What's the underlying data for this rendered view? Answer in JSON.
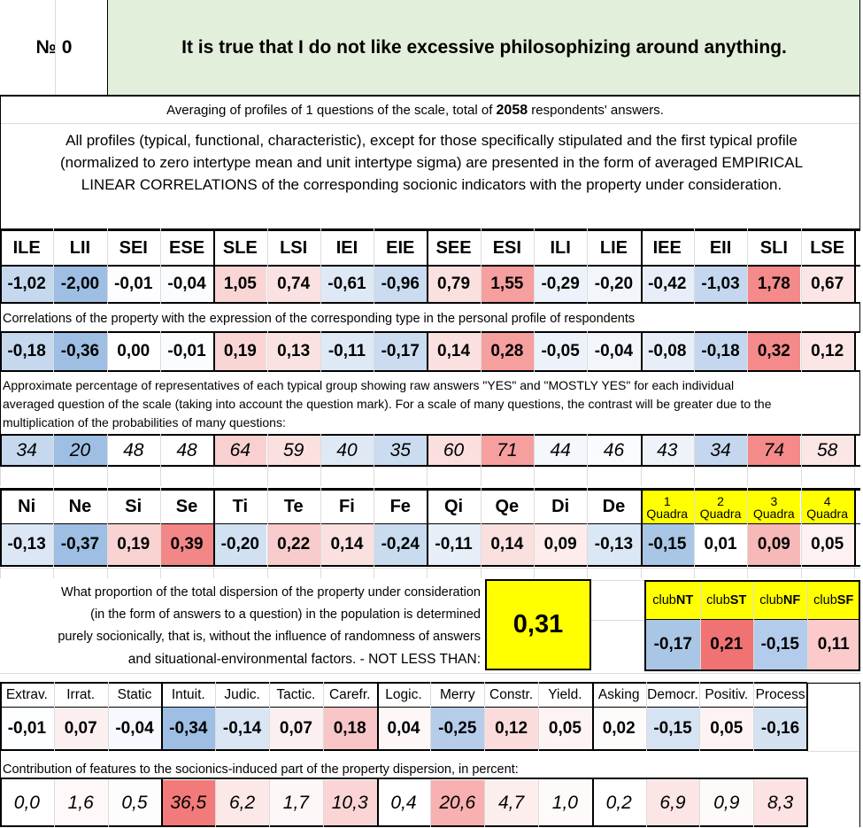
{
  "header": {
    "number_label": "№ 0",
    "question": "It is true that I do not like excessive philosophizing around anything."
  },
  "intro": {
    "averaging_pre": "Averaging of profiles of 1 questions of the scale, total of ",
    "respondents": "2058",
    "averaging_post": " respondents' answers.",
    "note_line1": "All profiles (typical, functional, characteristic), except for those specifically stipulated and the first typical profile",
    "note_line2": "(normalized to zero intertype mean and unit intertype sigma) are presented in the form of averaged EMPIRICAL",
    "note_line3": "LINEAR CORRELATIONS of the corresponding socionic indicators with the property under consideration."
  },
  "types": {
    "headers": [
      "ILE",
      "LII",
      "SEI",
      "ESE",
      "SLE",
      "LSI",
      "IEI",
      "EIE",
      "SEE",
      "ESI",
      "ILI",
      "LIE",
      "IEE",
      "EII",
      "SLI",
      "LSE"
    ],
    "typical_profile": [
      "-1,02",
      "-2,00",
      "-0,01",
      "-0,04",
      "1,05",
      "0,74",
      "-0,61",
      "-0,96",
      "0,79",
      "1,55",
      "-0,29",
      "-0,20",
      "-0,42",
      "-1,03",
      "1,78",
      "0,67"
    ],
    "typical_colors": [
      "#c5d8ee",
      "#9ebfe3",
      "#fdfdff",
      "#fbfcfe",
      "#f9d5d5",
      "#fbe2e2",
      "#dfe9f5",
      "#cbdcf0",
      "#fbe0e0",
      "#f69f9f",
      "#edf2fa",
      "#f2f6fb",
      "#e7eef8",
      "#c4d7ee",
      "#f48a8a",
      "#fbe5e5"
    ],
    "correlation_note": "Correlations of the property with the expression of the corresponding type in the personal profile of respondents",
    "correlations": [
      "-0,18",
      "-0,36",
      "0,00",
      "-0,01",
      "0,19",
      "0,13",
      "-0,11",
      "-0,17",
      "0,14",
      "0,28",
      "-0,05",
      "-0,04",
      "-0,08",
      "-0,18",
      "0,32",
      "0,12"
    ],
    "correlation_colors": [
      "#c5d8ee",
      "#9ebfe3",
      "#ffffff",
      "#fbfcfe",
      "#f9d5d5",
      "#fbe2e2",
      "#dfe9f5",
      "#cbdcf0",
      "#fbe0e0",
      "#f69f9f",
      "#edf2fa",
      "#f2f6fb",
      "#e7eef8",
      "#c4d7ee",
      "#f48a8a",
      "#fbe5e5"
    ],
    "percentage_note_line1": "Approximate percentage of representatives of each typical group showing raw answers \"YES\" and \"MOSTLY YES\" for each individual",
    "percentage_note_line2": "averaged question of the scale (taking into account the question mark). For a scale of many questions, the contrast will be greater due to the",
    "percentage_note_line3": "multiplication of the probabilities of many questions:",
    "percentages": [
      "34",
      "20",
      "48",
      "48",
      "64",
      "59",
      "40",
      "35",
      "60",
      "71",
      "44",
      "46",
      "43",
      "34",
      "74",
      "58"
    ],
    "percentage_colors": [
      "#c5d8ee",
      "#9ebfe3",
      "#ffffff",
      "#ffffff",
      "#f9d0d0",
      "#fbe0e0",
      "#dfe9f5",
      "#cbdcf0",
      "#fbdede",
      "#f69f9f",
      "#f4f7fc",
      "#fafbfe",
      "#eef3fa",
      "#c4d7ee",
      "#f48a8a",
      "#fbe5e5"
    ]
  },
  "functions": {
    "headers": [
      "Ni",
      "Ne",
      "Si",
      "Se",
      "Ti",
      "Te",
      "Fi",
      "Fe",
      "Qi",
      "Qe",
      "Di",
      "De"
    ],
    "values": [
      "-0,13",
      "-0,37",
      "0,19",
      "0,39",
      "-0,20",
      "0,22",
      "0,14",
      "-0,24",
      "-0,11",
      "0,14",
      "0,09",
      "-0,13"
    ],
    "colors": [
      "#dbe7f4",
      "#9ebfe3",
      "#f9d2d2",
      "#f38787",
      "#d2e1f1",
      "#f8cccc",
      "#fbe0e0",
      "#c9dbef",
      "#e6eef8",
      "#fbe0e0",
      "#fcecec",
      "#dbe7f4"
    ],
    "quadra_numbers": [
      "1",
      "2",
      "3",
      "4"
    ],
    "quadra_word": "Quadra",
    "quadra_values": [
      "-0,15",
      "0,01",
      "0,09",
      "0,05"
    ],
    "quadra_colors": [
      "#a9c6e6",
      "#ffffff",
      "#f7b8b8",
      "#fdf1f1"
    ]
  },
  "dispersion": {
    "line1": "What proportion of the total dispersion of the property under consideration",
    "line2": "(in the form of answers to a question) in the population is determined",
    "line3": "purely socionically, that is, without the influence of randomness of answers",
    "line4": "and situational-environmental factors. - NOT LESS THAN:",
    "value": "0,31",
    "highlight_color": "#ffff00"
  },
  "clubs": {
    "prefix": "club",
    "names": [
      "NT",
      "ST",
      "NF",
      "SF"
    ],
    "values": [
      "-0,17",
      "0,21",
      "-0,15",
      "0,11"
    ],
    "colors": [
      "#a9c6e6",
      "#f07272",
      "#b3cceb",
      "#fbcaca"
    ]
  },
  "features": {
    "headers": [
      "Extrav.",
      "Irrat.",
      "Static",
      "Intuit.",
      "Judic.",
      "Tactic.",
      "Carefr.",
      "Logic.",
      "Merry",
      "Constr.",
      "Yield.",
      "Asking",
      "Democr.",
      "Positiv.",
      "Process"
    ],
    "values": [
      "-0,01",
      "0,07",
      "-0,04",
      "-0,34",
      "-0,14",
      "0,07",
      "0,18",
      "0,04",
      "-0,25",
      "0,12",
      "0,05",
      "0,02",
      "-0,15",
      "0,05",
      "-0,16"
    ],
    "colors": [
      "#fdfeff",
      "#fcefef",
      "#f6f9fd",
      "#9ebfe3",
      "#dae6f4",
      "#fcefef",
      "#f8c6c6",
      "#fdf7f7",
      "#b6cdea",
      "#fbdcdc",
      "#fdf3f3",
      "#fefbfb",
      "#d6e3f2",
      "#fdf3f3",
      "#d3e1f1"
    ],
    "contribution_note": "Contribution of features to the socionics-induced part of the property dispersion, in percent:",
    "contributions": [
      "0,0",
      "1,6",
      "0,5",
      "36,5",
      "6,2",
      "1,7",
      "10,3",
      "0,4",
      "20,6",
      "4,7",
      "1,0",
      "0,2",
      "6,9",
      "0,9",
      "8,3"
    ],
    "contribution_colors": [
      "#ffffff",
      "#fef8f8",
      "#fefdfd",
      "#f27a7a",
      "#fde8e8",
      "#fef7f7",
      "#fbd5d5",
      "#ffffff",
      "#f8b0b0",
      "#fdeeee",
      "#fefafa",
      "#ffffff",
      "#fce5e5",
      "#fefafa",
      "#fce2e2"
    ]
  },
  "colors": {
    "header_bg": "#e2efda",
    "quadra_bg": "#ffff00",
    "club_header_bg": "#ffff00"
  }
}
